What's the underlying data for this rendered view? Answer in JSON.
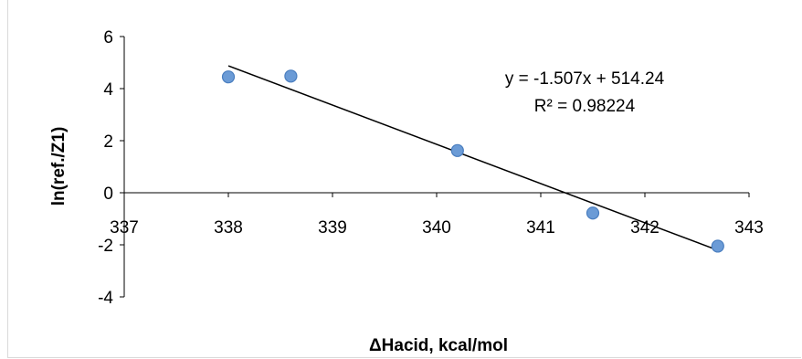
{
  "chart_data": {
    "type": "scatter",
    "title": "",
    "xlabel": "ΔHacid, kcal/mol",
    "ylabel": "ln(ref./Z1)",
    "xlim": [
      337,
      343
    ],
    "ylim": [
      -4,
      6
    ],
    "x_ticks": [
      "337",
      "338",
      "339",
      "340",
      "341",
      "342",
      "343"
    ],
    "y_ticks": [
      "6",
      "4",
      "2",
      "0",
      "-2",
      "-4"
    ],
    "grid": false,
    "legend": "none",
    "points": [
      {
        "x": 338.0,
        "y": 4.45
      },
      {
        "x": 338.6,
        "y": 4.48
      },
      {
        "x": 340.2,
        "y": 1.62
      },
      {
        "x": 341.5,
        "y": -0.78
      },
      {
        "x": 342.7,
        "y": -2.05
      }
    ],
    "trendline": {
      "slope": -1.507,
      "intercept": 514.24,
      "x_range": [
        338.0,
        342.7
      ]
    },
    "annotations": {
      "equation": "y = -1.507x + 514.24",
      "r_squared": "R² = 0.98224"
    },
    "colors": {
      "marker_fill": "#6b9bd6",
      "marker_stroke": "#4a7ebf",
      "trendline": "#000000",
      "axis": "#000000"
    }
  }
}
